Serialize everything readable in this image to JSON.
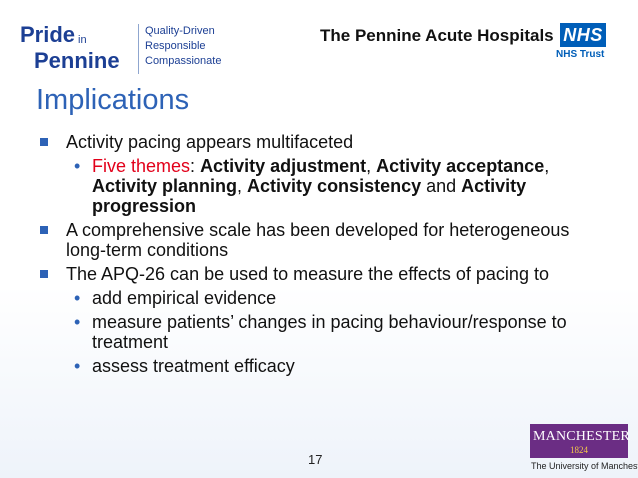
{
  "header": {
    "pride_logo": {
      "word1": "Pride",
      "in": "in",
      "word2": "Pennine"
    },
    "values": [
      "Quality-Driven",
      "Responsible",
      "Compassionate"
    ],
    "trust_name": "The Pennine Acute Hospitals",
    "nhs_badge": "NHS",
    "trust_sub": "NHS Trust"
  },
  "slide": {
    "title": "Implications",
    "page_number": "17"
  },
  "body": {
    "b1": "Activity pacing appears multifaceted",
    "b1_sub": {
      "red": "Five themes",
      "colon": ": ",
      "t1": "Activity adjustment",
      "c1": ", ",
      "t2": "Activity acceptance",
      "c2": ", ",
      "t3": "Activity planning",
      "c3": ", ",
      "t4": "Activity consistency",
      "and": " and ",
      "t5": "Activity progression"
    },
    "b2": "A comprehensive scale has been developed for heterogeneous long-term conditions",
    "b3": "The APQ-26 can be used to measure the effects of pacing to",
    "b3_subs": [
      "add empirical evidence",
      "measure patients’ changes in pacing behaviour/response to treatment",
      "assess treatment efficacy"
    ]
  },
  "footer": {
    "manchester_word": "MANCHESTER",
    "manchester_year": "1824",
    "university": "The University of Manchester"
  }
}
